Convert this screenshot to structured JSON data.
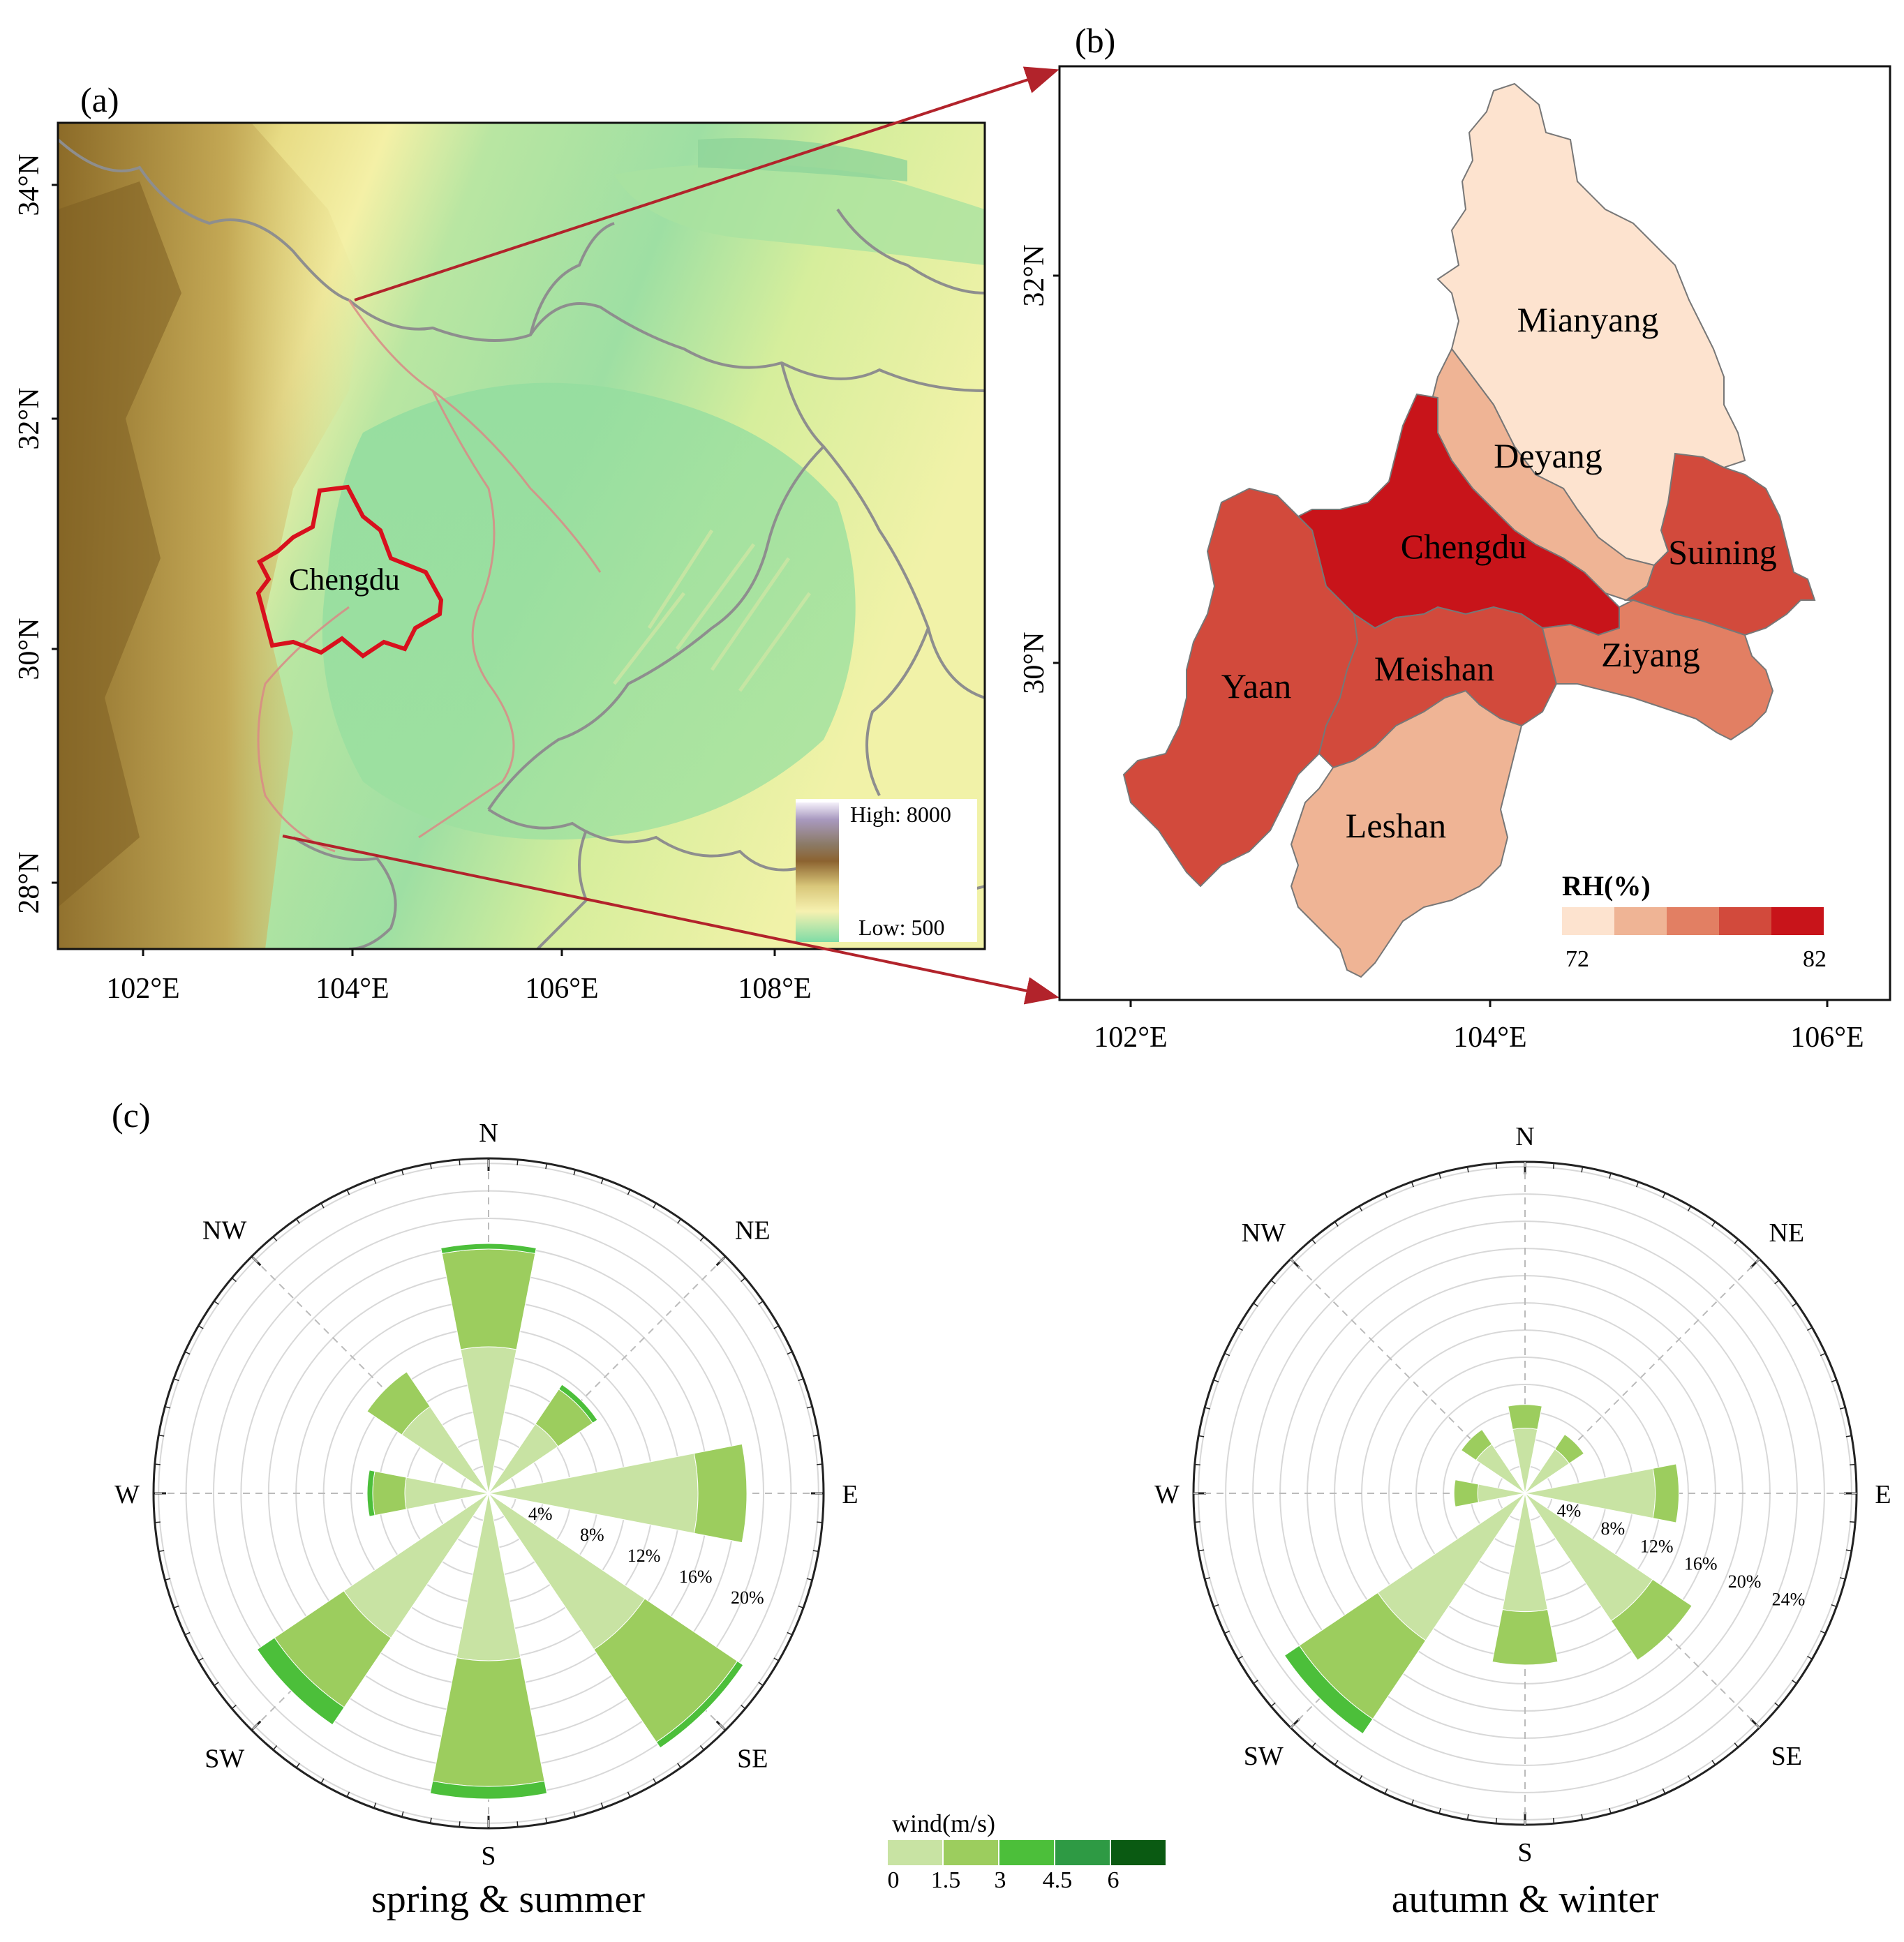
{
  "panel_a": {
    "label": "(a)",
    "lat_ticks": [
      "34°N",
      "32°N",
      "30°N",
      "28°N"
    ],
    "lon_ticks": [
      "102°E",
      "104°E",
      "106°E",
      "108°E"
    ],
    "highlight_city": "Chengdu",
    "legend": {
      "high": "High: 8000",
      "low": "Low: 500"
    }
  },
  "panel_b": {
    "label": "(b)",
    "lat_ticks": [
      "32°N",
      "30°N"
    ],
    "lon_ticks": [
      "102°E",
      "104°E",
      "106°E"
    ],
    "cities": [
      "Mianyang",
      "Deyang",
      "Chengdu",
      "Suining",
      "Yaan",
      "Meishan",
      "Ziyang",
      "Leshan"
    ],
    "legend": {
      "title": "RH(%)",
      "min": "72",
      "max": "82",
      "colors": [
        "#fde3cf",
        "#efb495",
        "#e27f63",
        "#d24a3c",
        "#c8141a"
      ]
    },
    "city_colors": {
      "Mianyang": "#fde3cf",
      "Deyang": "#efb495",
      "Chengdu": "#c8141a",
      "Suining": "#d24a3c",
      "Yaan": "#d24a3c",
      "Meishan": "#d24a3c",
      "Ziyang": "#e27f63",
      "Leshan": "#efb495"
    }
  },
  "panel_c": {
    "label": "(c)",
    "directions": [
      "N",
      "NE",
      "E",
      "SE",
      "S",
      "SW",
      "W",
      "NW"
    ],
    "speed_legend": {
      "title": "wind(m/s)",
      "ticks": [
        "0",
        "1.5",
        "3",
        "4.5",
        "6"
      ],
      "colors": [
        "#c8e3a3",
        "#9ccd5e",
        "#4cbf3a",
        "#2e9a44",
        "#0a5a12"
      ]
    },
    "roses": [
      {
        "title": "spring & summer",
        "ring_labels": [
          "4%",
          "8%",
          "12%",
          "16%",
          "20%"
        ],
        "ring_max": 24,
        "freq": [
          [
            10.5,
            7.0,
            0.4,
            0,
            0
          ],
          [
            6.0,
            3.0,
            0.4,
            0,
            0
          ],
          [
            15.0,
            3.5,
            0,
            0,
            0
          ],
          [
            13.5,
            8.0,
            0.5,
            0,
            0
          ],
          [
            12.0,
            9.0,
            0.9,
            0,
            0
          ],
          [
            12.5,
            6.0,
            1.5,
            0,
            0
          ],
          [
            6.0,
            2.3,
            0.4,
            0,
            0
          ],
          [
            7.5,
            3.0,
            0,
            0,
            0
          ]
        ]
      },
      {
        "title": "autumn & winter",
        "ring_labels": [
          "4%",
          "8%",
          "12%",
          "16%",
          "20%",
          "24%"
        ],
        "ring_max": 28,
        "freq": [
          [
            5.5,
            2.0,
            0,
            0,
            0
          ],
          [
            4.5,
            1.5,
            0,
            0,
            0
          ],
          [
            11.0,
            2.0,
            0,
            0,
            0
          ],
          [
            13.0,
            4.0,
            0,
            0,
            0
          ],
          [
            10.0,
            4.5,
            0,
            0,
            0
          ],
          [
            15.0,
            8.0,
            1.5,
            0,
            0
          ],
          [
            4.0,
            2.0,
            0,
            0,
            0
          ],
          [
            5.0,
            1.5,
            0,
            0,
            0
          ]
        ]
      }
    ]
  }
}
